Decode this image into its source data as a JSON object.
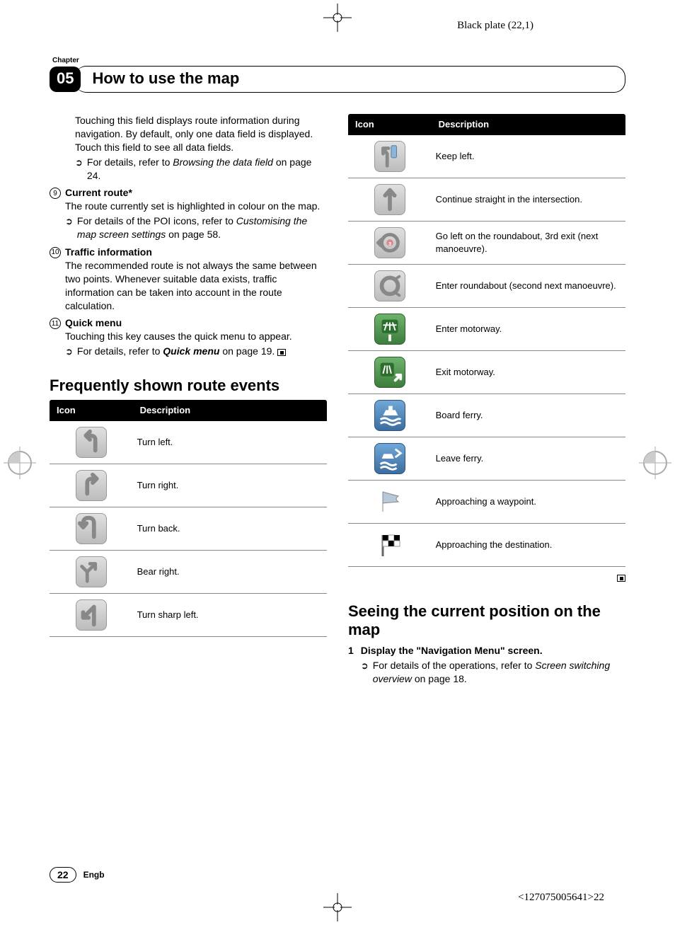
{
  "plate_label": "Black plate (22,1)",
  "chapter_label": "Chapter",
  "chapter_num": "05",
  "chapter_title": "How to use the map",
  "intro_para": "Touching this field displays route information during navigation. By default, only one data field is displayed. Touch this field to see all data fields.",
  "intro_ref_a": "For details, refer to ",
  "intro_ref_b": "Browsing the data field",
  "intro_ref_c": " on page 24.",
  "items": [
    {
      "num": "9",
      "title": "Current route*",
      "body": "The route currently set is highlighted in colour on the map.",
      "ref_a": "For details of the POI icons, refer to ",
      "ref_b": "Customising the map screen settings",
      "ref_c": " on page 58."
    },
    {
      "num": "10",
      "title": "Traffic information",
      "body": "The recommended route is not always the same between two points. Whenever suitable data exists, traffic information can be taken into account in the route calculation.",
      "ref_a": "",
      "ref_b": "",
      "ref_c": ""
    },
    {
      "num": "11",
      "title": "Quick menu",
      "body": "Touching this key causes the quick menu to appear.",
      "ref_a": "For details, refer to ",
      "ref_b": "Quick menu",
      "ref_c": " on page 19."
    }
  ],
  "section1_title": "Frequently shown route events",
  "table_headers": {
    "icon": "Icon",
    "desc": "Description"
  },
  "left_rows": [
    {
      "desc": "Turn left.",
      "svg": "turn-left",
      "cls": "icon-gray"
    },
    {
      "desc": "Turn right.",
      "svg": "turn-right",
      "cls": "icon-gray"
    },
    {
      "desc": "Turn back.",
      "svg": "turn-back",
      "cls": "icon-gray"
    },
    {
      "desc": "Bear right.",
      "svg": "bear-right",
      "cls": "icon-gray"
    },
    {
      "desc": "Turn sharp left.",
      "svg": "sharp-left",
      "cls": "icon-gray"
    }
  ],
  "right_rows": [
    {
      "desc": "Keep left.",
      "svg": "keep-left",
      "cls": "icon-gray"
    },
    {
      "desc": "Continue straight in the intersection.",
      "svg": "straight",
      "cls": "icon-gray"
    },
    {
      "desc": "Go left on the roundabout, 3rd exit (next manoeuvre).",
      "svg": "roundabout-3",
      "cls": "icon-gray"
    },
    {
      "desc": "Enter roundabout (second next manoeuvre).",
      "svg": "roundabout",
      "cls": "icon-gray"
    },
    {
      "desc": "Enter motorway.",
      "svg": "motorway-enter",
      "cls": "icon-green"
    },
    {
      "desc": "Exit motorway.",
      "svg": "motorway-exit",
      "cls": "icon-green"
    },
    {
      "desc": "Board ferry.",
      "svg": "ferry-board",
      "cls": "icon-blue"
    },
    {
      "desc": "Leave ferry.",
      "svg": "ferry-leave",
      "cls": "icon-blue"
    },
    {
      "desc": "Approaching a waypoint.",
      "svg": "waypoint",
      "cls": "icon-none"
    },
    {
      "desc": "Approaching the destination.",
      "svg": "destination",
      "cls": "icon-none"
    }
  ],
  "section2_title": "Seeing the current position on the map",
  "step1_num": "1",
  "step1_text": "Display the \"Navigation Menu\" screen.",
  "step1_ref_a": "For details of the operations, refer to ",
  "step1_ref_b": "Screen switching overview",
  "step1_ref_c": " on page 18.",
  "page_num": "22",
  "engb": "Engb",
  "doc_id": "<127075005641>22"
}
